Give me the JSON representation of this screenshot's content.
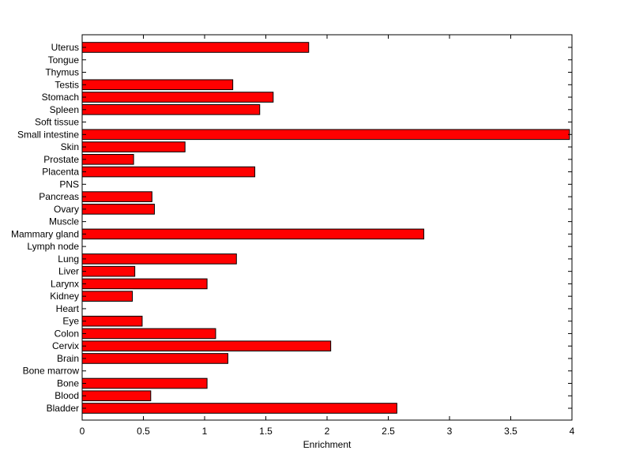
{
  "chart_data": {
    "type": "bar",
    "orientation": "horizontal",
    "title": "",
    "xlabel": "Enrichment",
    "ylabel": "",
    "xlim": [
      0,
      4
    ],
    "xticks": [
      "0",
      "0.5",
      "1",
      "1.5",
      "2",
      "2.5",
      "3",
      "3.5",
      "4"
    ],
    "grid": false,
    "legend": "none",
    "bar_color": "#ff0000",
    "categories": [
      "Bladder",
      "Blood",
      "Bone",
      "Bone marrow",
      "Brain",
      "Cervix",
      "Colon",
      "Eye",
      "Heart",
      "Kidney",
      "Larynx",
      "Liver",
      "Lung",
      "Lymph node",
      "Mammary gland",
      "Muscle",
      "Ovary",
      "Pancreas",
      "PNS",
      "Placenta",
      "Prostate",
      "Skin",
      "Small intestine",
      "Soft tissue",
      "Spleen",
      "Stomach",
      "Testis",
      "Thymus",
      "Tongue",
      "Uterus"
    ],
    "values": [
      2.57,
      0.56,
      1.02,
      0,
      1.19,
      2.03,
      1.09,
      0.49,
      0,
      0.41,
      1.02,
      0.43,
      1.26,
      0,
      2.79,
      0,
      0.59,
      0.57,
      0,
      1.41,
      0.42,
      0.84,
      3.98,
      0,
      1.45,
      1.56,
      1.23,
      0,
      0,
      1.85
    ]
  }
}
